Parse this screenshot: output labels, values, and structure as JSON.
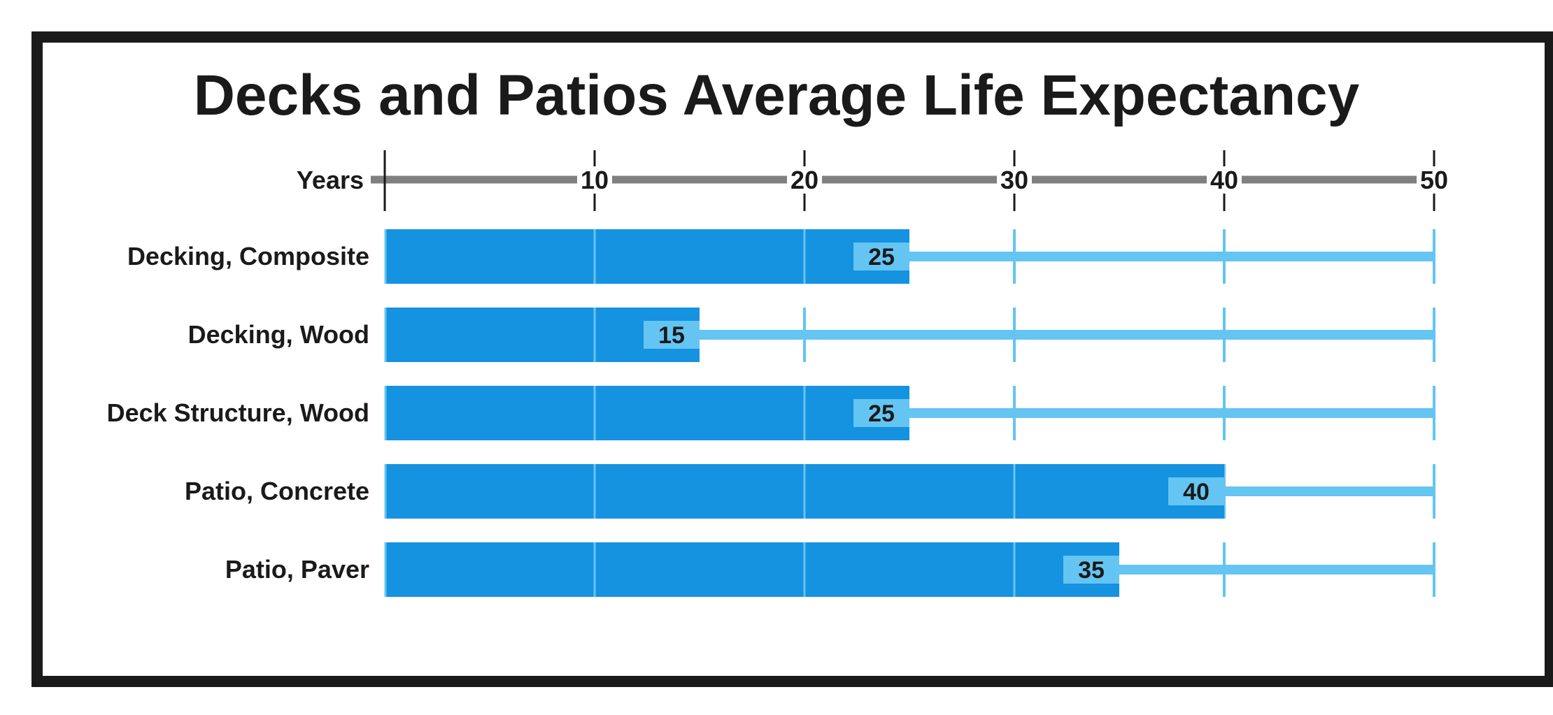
{
  "chart_data": {
    "type": "bar",
    "orientation": "horizontal",
    "title": "Decks and Patios Average Life Expectancy",
    "xlabel": "Years",
    "xlim": [
      0,
      50
    ],
    "xticks": [
      10,
      20,
      30,
      40,
      50
    ],
    "categories": [
      "Decking, Composite",
      "Decking, Wood",
      "Deck Structure, Wood",
      "Patio, Concrete",
      "Patio, Paver"
    ],
    "values": [
      25,
      15,
      25,
      40,
      35
    ],
    "grid": true,
    "colors": {
      "bar": "#1592e0",
      "track": "#64c5f2",
      "label_box": "#64c5f2",
      "axis": "#808080",
      "text": "#1a1a1a",
      "frame": "#1a1a1a"
    }
  }
}
